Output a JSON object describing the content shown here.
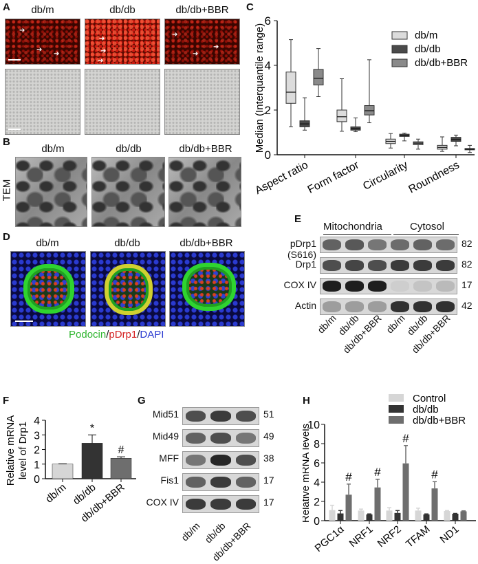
{
  "panels": {
    "A": {
      "label": "A",
      "groups": [
        "db/m",
        "db/db",
        "db/db+BBR"
      ]
    },
    "B": {
      "label": "B",
      "groups": [
        "db/m",
        "db/db",
        "db/db+BBR"
      ],
      "side_label": "TEM"
    },
    "D": {
      "label": "D",
      "groups": [
        "db/m",
        "db/db",
        "db/db+BBR"
      ],
      "caption": {
        "podocin": "Podocin",
        "sep1": "/",
        "pdrp1": "pDrp1",
        "sep2": "/",
        "dapi": "DAPI"
      },
      "colors": {
        "podocin": "#2fb52f",
        "pdrp1": "#d42020",
        "dapi": "#2a3ad0"
      }
    },
    "E": {
      "label": "E",
      "fractions": [
        "Mitochondria",
        "Cytosol"
      ],
      "rows": [
        {
          "name": "pDrp1 (S616)",
          "mw": "82",
          "intensity": [
            0.6,
            0.65,
            0.5,
            0.55,
            0.6,
            0.55
          ]
        },
        {
          "name": "Drp1",
          "mw": "82",
          "intensity": [
            0.7,
            0.75,
            0.7,
            0.8,
            0.8,
            0.8
          ]
        },
        {
          "name": "COX IV",
          "mw": "17",
          "intensity": [
            0.95,
            0.95,
            0.95,
            0.05,
            0.1,
            0.15
          ]
        },
        {
          "name": "Actin",
          "mw": "42",
          "intensity": [
            0.3,
            0.3,
            0.3,
            0.85,
            0.85,
            0.85
          ]
        }
      ],
      "lanes": [
        "db/m",
        "db/db",
        "db/db+BBR",
        "db/m",
        "db/db",
        "db/db+BBR"
      ]
    },
    "G": {
      "label": "G",
      "rows": [
        {
          "name": "Mid51",
          "mw": "51",
          "intensity": [
            0.7,
            0.8,
            0.7
          ]
        },
        {
          "name": "Mid49",
          "mw": "49",
          "intensity": [
            0.6,
            0.7,
            0.5
          ]
        },
        {
          "name": "MFF",
          "mw": "38",
          "intensity": [
            0.5,
            0.9,
            0.7
          ]
        },
        {
          "name": "Fis1",
          "mw": "17",
          "intensity": [
            0.6,
            0.8,
            0.6
          ]
        },
        {
          "name": "COX IV",
          "mw": "17",
          "intensity": [
            0.8,
            0.8,
            0.8
          ]
        }
      ],
      "lanes": [
        "db/m",
        "db/db",
        "db/db+BBR"
      ]
    }
  },
  "chart_data": [
    {
      "panel": "C",
      "type": "boxplot",
      "categories": [
        "Aspect ratio",
        "Form factor",
        "Circularity",
        "Roundness"
      ],
      "ylabel": "Median (Interquantile range)",
      "ylim": [
        0,
        6
      ],
      "yticks": [
        0,
        2,
        4,
        6
      ],
      "legend_position": "top-right",
      "series": [
        {
          "name": "db/m",
          "color": "#dcdcdc",
          "boxes": [
            [
              1.25,
              2.3,
              2.8,
              3.7,
              5.15
            ],
            [
              1.05,
              1.48,
              1.7,
              2.0,
              3.4
            ],
            [
              0.3,
              0.5,
              0.6,
              0.7,
              0.95
            ],
            [
              0.15,
              0.25,
              0.33,
              0.42,
              0.8
            ]
          ]
        },
        {
          "name": "db/db",
          "color": "#4a4a4a",
          "boxes": [
            [
              1.1,
              1.25,
              1.38,
              1.52,
              2.55
            ],
            [
              1.03,
              1.1,
              1.17,
              1.25,
              1.65
            ],
            [
              0.62,
              0.82,
              0.87,
              0.92,
              0.97
            ],
            [
              0.4,
              0.6,
              0.68,
              0.78,
              0.88
            ]
          ]
        },
        {
          "name": "db/db+BBR",
          "color": "#8a8a8a",
          "boxes": [
            [
              2.6,
              3.12,
              3.42,
              3.82,
              4.75
            ],
            [
              1.43,
              1.78,
              1.97,
              2.2,
              4.25
            ],
            [
              0.25,
              0.45,
              0.52,
              0.58,
              0.7
            ],
            [
              0.1,
              0.22,
              0.25,
              0.28,
              0.42
            ]
          ]
        }
      ]
    },
    {
      "panel": "F",
      "type": "bar",
      "categories": [
        "db/m",
        "db/db",
        "db/db+BBR"
      ],
      "values": [
        1.0,
        2.43,
        1.4
      ],
      "errors": [
        0.02,
        0.57,
        0.1
      ],
      "colors": [
        "#d6d6d6",
        "#333333",
        "#6e6e6e"
      ],
      "annotations": [
        "",
        "*",
        "#"
      ],
      "ylabel": [
        "Relative mRNA",
        "level of Drp1"
      ],
      "ylim": [
        0,
        4
      ],
      "yticks": [
        0,
        1,
        2,
        3,
        4
      ]
    },
    {
      "panel": "H",
      "type": "bar",
      "categories": [
        "PGC1α",
        "NRF1",
        "NRF2",
        "TFAM",
        "ND1"
      ],
      "ylabel": "Relative mRNA levels",
      "ylim": [
        0,
        10
      ],
      "yticks": [
        0,
        2,
        4,
        6,
        8,
        10
      ],
      "legend_position": "top-right",
      "series": [
        {
          "name": "Control",
          "color": "#d6d6d6",
          "values": [
            1.1,
            1.05,
            1.05,
            1.05,
            1.0
          ],
          "errors": [
            0.5,
            0.15,
            0.3,
            0.25,
            0.05
          ]
        },
        {
          "name": "db/db",
          "color": "#333333",
          "values": [
            0.75,
            0.65,
            0.8,
            0.65,
            0.72
          ],
          "errors": [
            0.3,
            0.05,
            0.25,
            0.05,
            0.03
          ]
        },
        {
          "name": "db/db+BBR",
          "color": "#6e6e6e",
          "values": [
            2.7,
            3.45,
            5.95,
            3.35,
            0.97
          ],
          "errors": [
            1.1,
            0.85,
            1.85,
            0.7,
            0.05
          ],
          "annotations": [
            "#",
            "#",
            "#",
            "#",
            ""
          ]
        }
      ]
    }
  ]
}
